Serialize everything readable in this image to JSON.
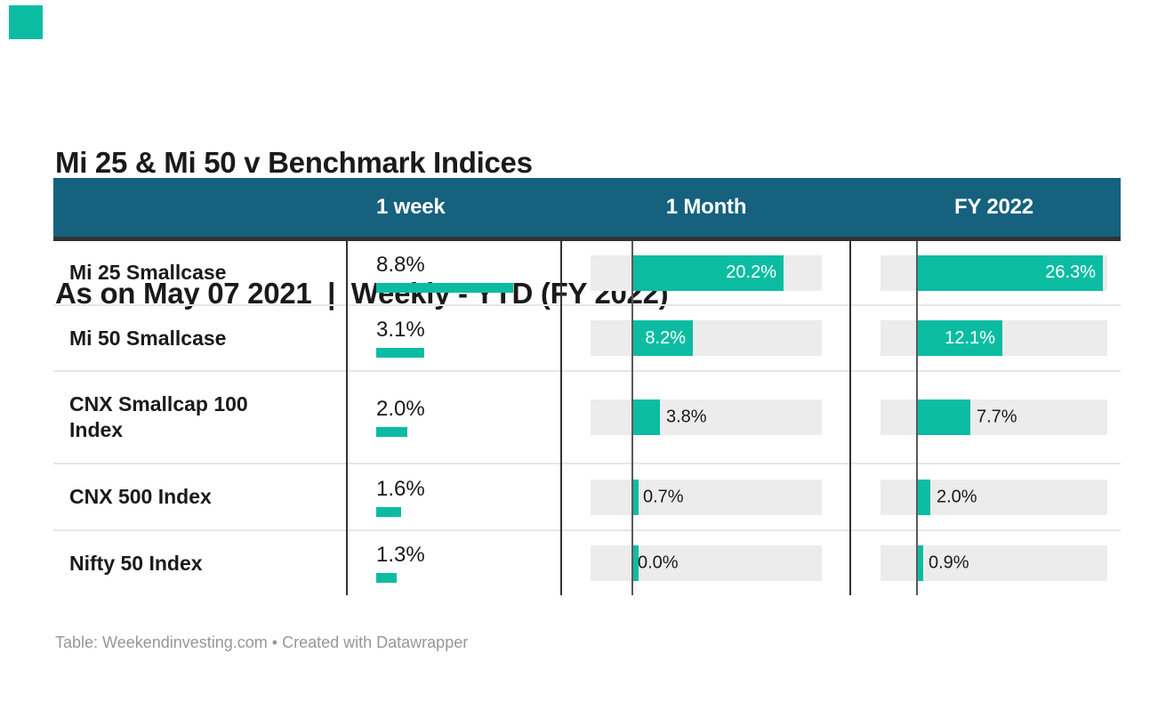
{
  "brand": {
    "accent_square_color": "#0CBCA2"
  },
  "title": {
    "line1": "Mi 25 & Mi 50 v Benchmark Indices",
    "line2": "As on May 07 2021  |  Weekly - YTD (FY 2022)"
  },
  "table": {
    "header": {
      "bg_color": "#15617E",
      "border_color": "#333333",
      "text_color": "#FFFFFF",
      "columns": [
        "1 week",
        "1 Month",
        "FY 2022"
      ]
    },
    "colors": {
      "bar": "#0CBCA2",
      "track": "#ECECEC",
      "column_divider": "#333333",
      "zero_axis": "#595959",
      "row_separator": "#E6E6E6",
      "value_text": "#1A1A1A",
      "bar_label_inside": "#FFFFFF"
    }
  },
  "chart_data": {
    "type": "table",
    "title": "Mi 25 & Mi 50 v Benchmark Indices",
    "subtitle": "As on May 07 2021 | Weekly - YTD (FY 2022)",
    "columns": [
      "",
      "1 week",
      "1 Month",
      "FY 2022"
    ],
    "unit": "%",
    "layout_hints": {
      "month_axis_offset_pct": "bars grow right from a zero axis inset in a gray track",
      "bars_with_label_inside": [
        "20.2%",
        "26.3%",
        "8.2%",
        "12.1%"
      ]
    },
    "rows": [
      {
        "label": "Mi 25 Smallcase",
        "week": 8.8,
        "week_display": "8.8%",
        "month": 20.2,
        "month_display": "20.2%",
        "fy": 26.3,
        "fy_display": "26.3%"
      },
      {
        "label": "Mi 50 Smallcase",
        "week": 3.1,
        "week_display": "3.1%",
        "month": 8.2,
        "month_display": "8.2%",
        "fy": 12.1,
        "fy_display": "12.1%"
      },
      {
        "label": "CNX Smallcap 100 Index",
        "week": 2.0,
        "week_display": "2.0%",
        "month": 3.8,
        "month_display": "3.8%",
        "fy": 7.7,
        "fy_display": "7.7%"
      },
      {
        "label": "CNX 500 Index",
        "week": 1.6,
        "week_display": "1.6%",
        "month": 0.7,
        "month_display": "0.7%",
        "fy": 2.0,
        "fy_display": "2.0%"
      },
      {
        "label": "Nifty 50 Index",
        "week": 1.3,
        "week_display": "1.3%",
        "month": 0.0,
        "month_display": "0.0%",
        "fy": 0.9,
        "fy_display": "0.9%"
      }
    ]
  },
  "footer": {
    "text": "Table: Weekendinvesting.com • Created with Datawrapper"
  }
}
